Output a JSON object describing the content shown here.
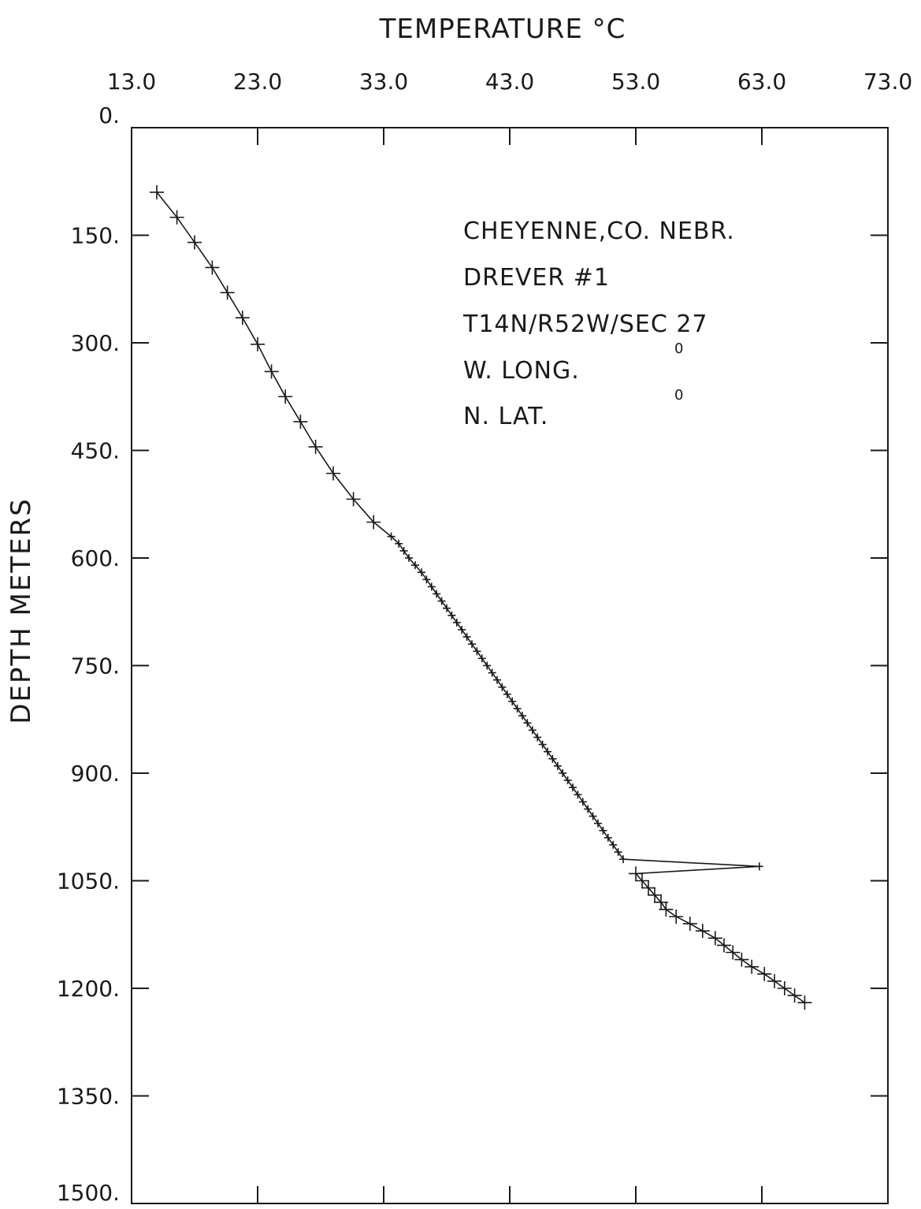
{
  "chart_data": {
    "type": "line",
    "title": "TEMPERATURE °C",
    "xlabel": "TEMPERATURE °C",
    "ylabel": "DEPTH METERS",
    "xlim": [
      13.0,
      73.0
    ],
    "ylim": [
      0,
      1500
    ],
    "y_inverted": true,
    "x_axis_position": "top",
    "x_tick_labels": [
      "13.0",
      "23.0",
      "33.0",
      "43.0",
      "53.0",
      "63.0",
      "73.0"
    ],
    "x_ticks": [
      13.0,
      23.0,
      33.0,
      43.0,
      53.0,
      63.0,
      73.0
    ],
    "y_tick_labels": [
      "0.",
      "150.",
      "300.",
      "450.",
      "600.",
      "750.",
      "900.",
      "1050.",
      "1200.",
      "1350.",
      "1500."
    ],
    "y_ticks": [
      0,
      150,
      300,
      450,
      600,
      750,
      900,
      1050,
      1200,
      1350,
      1500
    ],
    "grid": false,
    "annotations": [
      "CHEYENNE,CO. NEBR.",
      "DREVER #1",
      "T14N/R52W/SEC 27",
      "W. LONG.",
      "N. LAT."
    ],
    "annotation_marks": [
      "0",
      "0"
    ],
    "series": [
      {
        "x": [
          15.0,
          16.6,
          18.0,
          19.4,
          20.6,
          21.8,
          23.0,
          24.1,
          25.2,
          26.4,
          27.6,
          29.0,
          30.6,
          32.2,
          33.6,
          34.2,
          34.6,
          35.0,
          35.5,
          36.0,
          36.4,
          36.8,
          37.2,
          37.6,
          38.0,
          38.4,
          38.8,
          39.2,
          39.6,
          40.0,
          40.4,
          40.8,
          41.2,
          41.6,
          42.0,
          42.4,
          42.8,
          43.2,
          43.6,
          44.0,
          44.4,
          44.8,
          45.2,
          45.6,
          46.0,
          46.4,
          46.8,
          47.2,
          47.6,
          48.0,
          48.4,
          48.8,
          49.2,
          49.6,
          50.0,
          50.4,
          50.8,
          51.2,
          51.6,
          52.0,
          62.8,
          53.0,
          53.5,
          54.0,
          54.5,
          55.0,
          55.4,
          56.2,
          57.3,
          58.3,
          59.3,
          60.0,
          60.7,
          61.4,
          62.2,
          63.2,
          64.0,
          64.8,
          65.6,
          66.4
        ],
        "y": [
          90,
          125,
          160,
          195,
          230,
          265,
          302,
          340,
          375,
          410,
          445,
          482,
          518,
          550,
          570,
          580,
          590,
          600,
          610,
          620,
          630,
          640,
          650,
          660,
          670,
          680,
          690,
          700,
          710,
          720,
          730,
          740,
          750,
          760,
          770,
          780,
          790,
          800,
          810,
          820,
          830,
          840,
          850,
          860,
          870,
          880,
          890,
          900,
          910,
          920,
          930,
          940,
          950,
          960,
          970,
          980,
          990,
          1000,
          1010,
          1020,
          1030,
          1040,
          1050,
          1060,
          1070,
          1080,
          1090,
          1100,
          1110,
          1120,
          1130,
          1140,
          1150,
          1160,
          1170,
          1180,
          1190,
          1200,
          1210,
          1220
        ]
      }
    ]
  }
}
